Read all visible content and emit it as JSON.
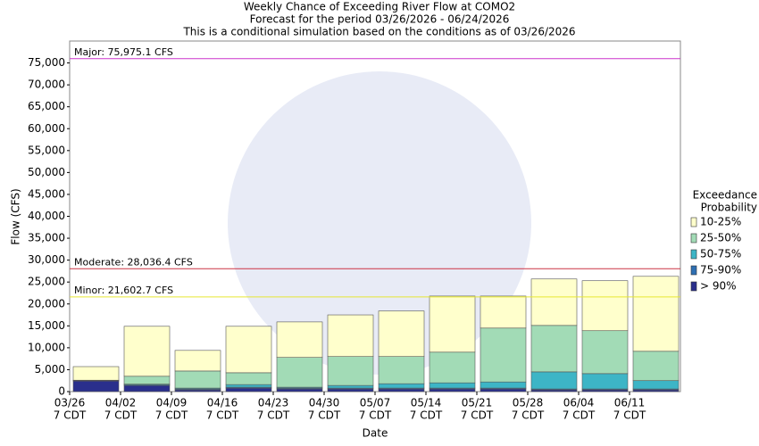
{
  "chart_data": {
    "type": "stacked_bar",
    "title": [
      "Weekly Chance of Exceeding River Flow at COMO2",
      "Forecast for the period 03/26/2026 - 06/24/2026",
      "This is a conditional simulation based on the conditions as of 03/26/2026"
    ],
    "y_label": "Flow (CFS)",
    "x_label": "Date",
    "categories": [
      "03/26",
      "04/02",
      "04/09",
      "04/16",
      "04/23",
      "04/30",
      "05/07",
      "05/14",
      "05/21",
      "05/28",
      "06/04",
      "06/11"
    ],
    "category_time": "7 CDT",
    "ylim": [
      0,
      80000
    ],
    "yticks": [
      {
        "value": 0,
        "label": "0"
      },
      {
        "value": 5000,
        "label": "5,000"
      },
      {
        "value": 10000,
        "label": "10,000"
      },
      {
        "value": 15000,
        "label": "15,000"
      },
      {
        "value": 20000,
        "label": "20,000"
      },
      {
        "value": 25000,
        "label": "25,000"
      },
      {
        "value": 30000,
        "label": "30,000"
      },
      {
        "value": 35000,
        "label": "35,000"
      },
      {
        "value": 40000,
        "label": "40,000"
      },
      {
        "value": 45000,
        "label": "45,000"
      },
      {
        "value": 50000,
        "label": "50,000"
      },
      {
        "value": 55000,
        "label": "55,000"
      },
      {
        "value": 60000,
        "label": "60,000"
      },
      {
        "value": 65000,
        "label": "65,000"
      },
      {
        "value": 70000,
        "label": "70,000"
      },
      {
        "value": 75000,
        "label": "75,000"
      }
    ],
    "legend_title": [
      "Exceedance",
      "Probability"
    ],
    "series": [
      {
        "name": "> 90%",
        "color": "#2a2f8c",
        "values": [
          2400,
          1400,
          400,
          800,
          600,
          600,
          600,
          600,
          600,
          400,
          400,
          400
        ]
      },
      {
        "name": "75-90%",
        "color": "#2e6fb2",
        "values": [
          50,
          100,
          200,
          200,
          200,
          200,
          200,
          200,
          200,
          200,
          200,
          200
        ]
      },
      {
        "name": "50-75%",
        "color": "#3db5c6",
        "values": [
          50,
          200,
          200,
          600,
          200,
          600,
          1000,
          1200,
          1400,
          3900,
          3500,
          1900
        ]
      },
      {
        "name": "25-50%",
        "color": "#a2dbb6",
        "values": [
          100,
          1800,
          3900,
          2700,
          6800,
          6600,
          6200,
          7000,
          12300,
          10600,
          9800,
          6700
        ]
      },
      {
        "name": "10-25%",
        "color": "#ffffcc",
        "values": [
          3100,
          11400,
          4700,
          10600,
          8100,
          9500,
          10400,
          12800,
          7300,
          10600,
          11400,
          17100
        ]
      }
    ],
    "reference_lines": [
      {
        "label": "Major: 75,975.1 CFS",
        "value": 75975.1,
        "color": "#cc33cc"
      },
      {
        "label": "Moderate: 28,036.4 CFS",
        "value": 28036.4,
        "color": "#cc3344"
      },
      {
        "label": "Minor: 21,602.7 CFS",
        "value": 21602.7,
        "color": "#e6e633"
      }
    ]
  }
}
